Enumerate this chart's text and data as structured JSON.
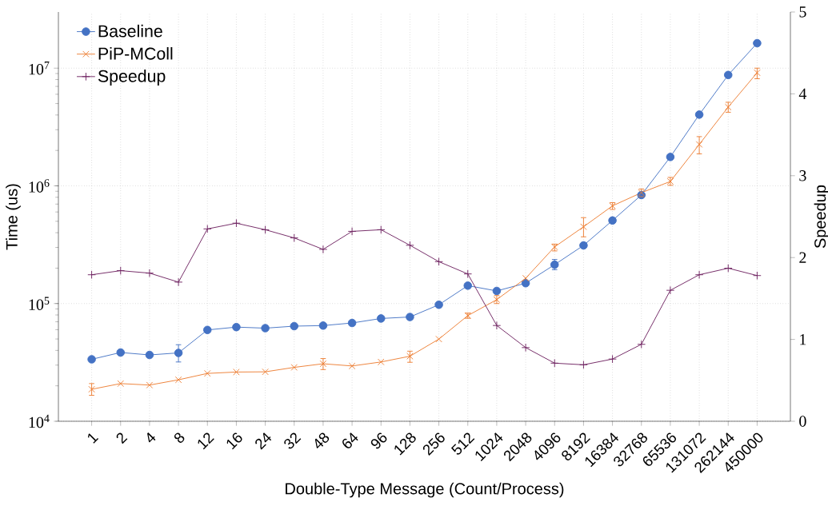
{
  "chart_data": {
    "type": "line",
    "xlabel": "Double-Type Message (Count/Process)",
    "ylabel": "Time (us)",
    "y2label": "Speedup",
    "categories": [
      "1",
      "2",
      "4",
      "8",
      "12",
      "16",
      "24",
      "32",
      "48",
      "64",
      "96",
      "128",
      "256",
      "512",
      "1024",
      "2048",
      "4096",
      "8192",
      "16384",
      "32768",
      "65536",
      "131072",
      "262144",
      "450000"
    ],
    "series": [
      {
        "name": "Baseline",
        "color": "#4472c4",
        "marker": "circle",
        "values": [
          33600,
          38400,
          36600,
          38100,
          59700,
          63100,
          61800,
          64300,
          65000,
          68400,
          74700,
          76900,
          97700,
          142000,
          128000,
          149000,
          214000,
          312000,
          508000,
          836000,
          1760000,
          4030000,
          8750000,
          16300000
        ],
        "errors": [
          null,
          null,
          null,
          [
            31900,
            44700
          ],
          null,
          null,
          null,
          null,
          null,
          null,
          null,
          null,
          null,
          null,
          null,
          null,
          [
            194000,
            237000
          ],
          null,
          null,
          null,
          null,
          null,
          null,
          null
        ]
      },
      {
        "name": "PiP-MColl",
        "color": "#ed7d31",
        "marker": "cross",
        "values": [
          18700,
          20900,
          20300,
          22500,
          25500,
          26200,
          26300,
          28700,
          30800,
          29500,
          31900,
          35700,
          49900,
          79000,
          108000,
          164000,
          303000,
          449000,
          676000,
          875000,
          1090000,
          2250000,
          4670000,
          9140000
        ],
        "errors": [
          [
            16600,
            20900
          ],
          null,
          null,
          null,
          null,
          null,
          null,
          null,
          [
            27500,
            34100
          ],
          null,
          null,
          [
            31700,
            39400
          ],
          null,
          [
            75000,
            83000
          ],
          [
            100000,
            117000
          ],
          null,
          [
            280000,
            320000
          ],
          [
            369000,
            537000
          ],
          [
            630000,
            720000
          ],
          [
            810000,
            940000
          ],
          [
            1010000,
            1180000
          ],
          [
            1870000,
            2620000
          ],
          [
            4220000,
            5130000
          ],
          [
            8130000,
            10000000
          ]
        ]
      },
      {
        "name": "Speedup",
        "color": "#6e2160",
        "marker": "plus",
        "axis": "y2",
        "values": [
          1.79,
          1.84,
          1.81,
          1.7,
          2.35,
          2.42,
          2.34,
          2.24,
          2.1,
          2.32,
          2.34,
          2.15,
          1.95,
          1.8,
          1.17,
          0.9,
          0.71,
          0.69,
          0.76,
          0.94,
          1.6,
          1.79,
          1.87,
          1.78
        ]
      }
    ],
    "log": "y",
    "ylim": [
      10000,
      30000000
    ],
    "yticks": [
      {
        "value": 10000,
        "label": "10$^{4}$"
      },
      {
        "value": 100000,
        "label": "10$^{5}$"
      },
      {
        "value": 1000000,
        "label": "10$^{6}$"
      },
      {
        "value": 10000000,
        "label": "10$^{7}$"
      }
    ],
    "y2lim": [
      0,
      5
    ],
    "y2ticks": [
      0,
      1,
      2,
      3,
      4,
      5
    ],
    "grid": true,
    "legend": "top left"
  }
}
